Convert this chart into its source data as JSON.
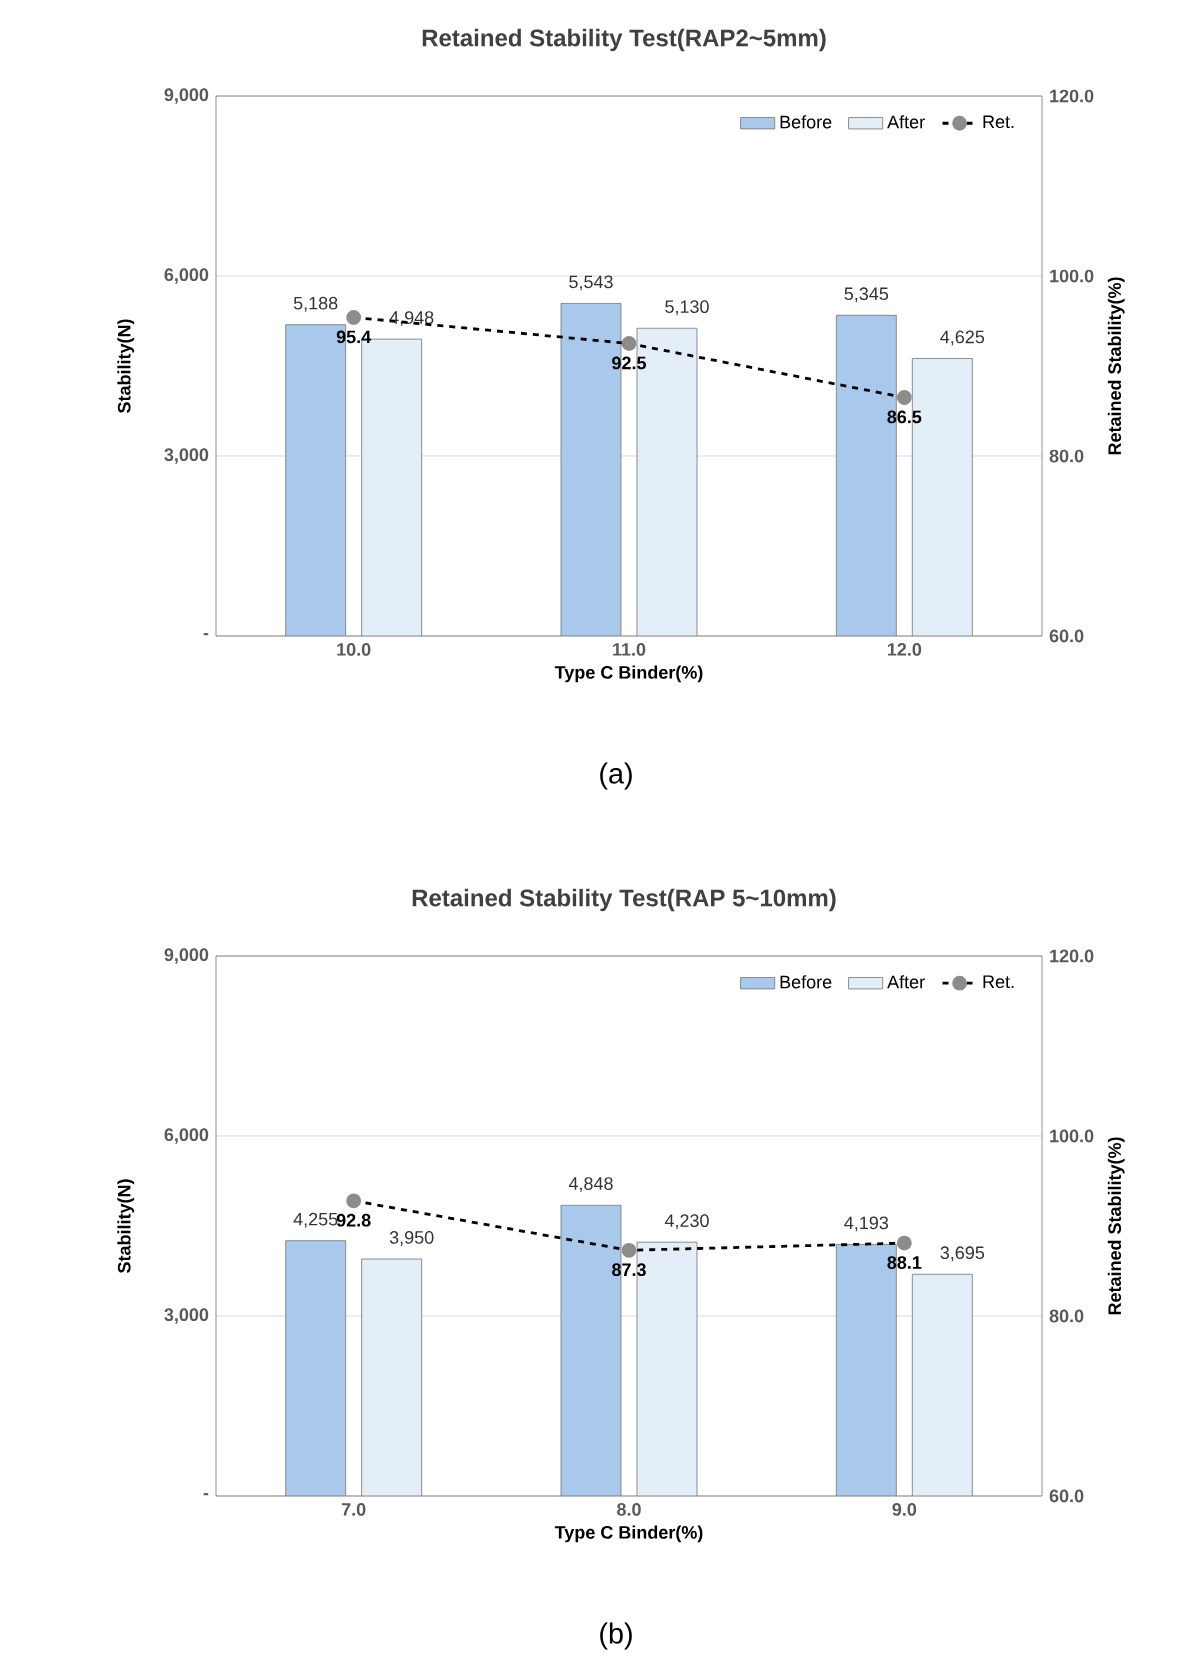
{
  "chart_data": [
    {
      "type": "bar",
      "title": "Retained Stability Test(RAP2~5mm)",
      "xlabel": "Type C Binder(%)",
      "ylabel": "Stability(N)",
      "y2label": "Retained Stability(%)",
      "categories": [
        "10.0",
        "11.0",
        "12.0"
      ],
      "series": [
        {
          "name": "Before",
          "color": "#a9c9ec",
          "values": [
            5188,
            5543,
            5345
          ],
          "value_labels": [
            "5,188",
            "5,543",
            "5,345"
          ]
        },
        {
          "name": "After",
          "color": "#e3eef9",
          "values": [
            4948,
            5130,
            4625
          ],
          "value_labels": [
            "4,948",
            "5,130",
            "4,625"
          ]
        },
        {
          "name": "Ret.",
          "type": "line",
          "axis": "y2",
          "color": "#000000",
          "marker": "circle",
          "line_style": "dashed",
          "values": [
            95.4,
            92.5,
            86.5
          ],
          "value_labels": [
            "95.4",
            "92.5",
            "86.5"
          ]
        }
      ],
      "ylim": [
        0,
        9000
      ],
      "yticks": [
        {
          "value": 0,
          "label": "-"
        },
        {
          "value": 3000,
          "label": "3,000"
        },
        {
          "value": 6000,
          "label": "6,000"
        },
        {
          "value": 9000,
          "label": "9,000"
        }
      ],
      "y2lim": [
        60,
        120
      ],
      "y2ticks": [
        {
          "value": 60,
          "label": "60.0"
        },
        {
          "value": 80,
          "label": "80.0"
        },
        {
          "value": 100,
          "label": "100.0"
        },
        {
          "value": 120,
          "label": "120.0"
        }
      ],
      "grid": "y",
      "legend": "top right",
      "annotations": [
        "(a)"
      ]
    },
    {
      "type": "bar",
      "title": "Retained Stability Test(RAP 5~10mm)",
      "xlabel": "Type C Binder(%)",
      "ylabel": "Stability(N)",
      "y2label": "Retained Stability(%)",
      "categories": [
        "7.0",
        "8.0",
        "9.0"
      ],
      "series": [
        {
          "name": "Before",
          "color": "#a9c9ec",
          "values": [
            4255,
            4848,
            4193
          ],
          "value_labels": [
            "4,255",
            "4,848",
            "4,193"
          ]
        },
        {
          "name": "After",
          "color": "#e3eef9",
          "values": [
            3950,
            4230,
            3695
          ],
          "value_labels": [
            "3,950",
            "4,230",
            "3,695"
          ]
        },
        {
          "name": "Ret.",
          "type": "line",
          "axis": "y2",
          "color": "#000000",
          "marker": "circle",
          "line_style": "dashed",
          "values": [
            92.8,
            87.3,
            88.1
          ],
          "value_labels": [
            "92.8",
            "87.3",
            "88.1"
          ]
        }
      ],
      "ylim": [
        0,
        9000
      ],
      "yticks": [
        {
          "value": 0,
          "label": "-"
        },
        {
          "value": 3000,
          "label": "3,000"
        },
        {
          "value": 6000,
          "label": "6,000"
        },
        {
          "value": 9000,
          "label": "9,000"
        }
      ],
      "y2lim": [
        60,
        120
      ],
      "y2ticks": [
        {
          "value": 60,
          "label": "60.0"
        },
        {
          "value": 80,
          "label": "80.0"
        },
        {
          "value": 100,
          "label": "100.0"
        },
        {
          "value": 120,
          "label": "120.0"
        }
      ],
      "grid": "y",
      "legend": "top right",
      "annotations": [
        "(b)"
      ]
    }
  ]
}
